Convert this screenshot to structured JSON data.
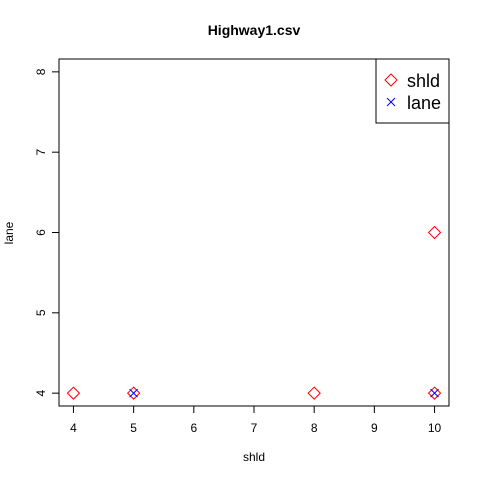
{
  "chart_data": {
    "type": "scatter",
    "title": "Highway1.csv",
    "xlabel": "shld",
    "ylabel": "lane",
    "xlim": [
      3.76,
      10.24
    ],
    "ylim": [
      3.84,
      8.16
    ],
    "xticks": [
      "4",
      "5",
      "6",
      "7",
      "8",
      "9",
      "10"
    ],
    "yticks": [
      "4",
      "5",
      "6",
      "7",
      "8"
    ],
    "grid": false,
    "legend_position": "top-right",
    "series": [
      {
        "name": "shld",
        "marker": "diamond-open",
        "color": "#FF0000",
        "points": [
          {
            "x": 4,
            "y": 4
          },
          {
            "x": 5,
            "y": 4
          },
          {
            "x": 8,
            "y": 4
          },
          {
            "x": 10,
            "y": 4
          },
          {
            "x": 10,
            "y": 6
          }
        ]
      },
      {
        "name": "lane",
        "marker": "x",
        "color": "#0000FF",
        "points": [
          {
            "x": 5,
            "y": 4
          },
          {
            "x": 10,
            "y": 4
          }
        ]
      }
    ]
  }
}
